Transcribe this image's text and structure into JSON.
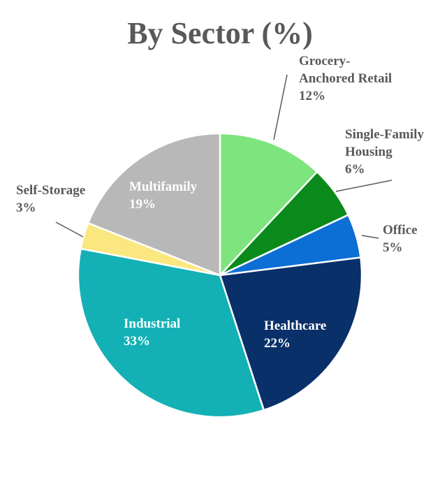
{
  "chart_data": {
    "type": "pie",
    "title": "By Sector (%)",
    "slices": [
      {
        "name": "Grocery-Anchored Retail",
        "label_lines": [
          "Grocery-",
          "Anchored Retail"
        ],
        "value": 12,
        "value_label": "12%",
        "color": "#7ee47e",
        "label_style": "outside"
      },
      {
        "name": "Single-Family Housing",
        "label_lines": [
          "Single-Family",
          "Housing"
        ],
        "value": 6,
        "value_label": "6%",
        "color": "#0a8a1a",
        "label_style": "outside"
      },
      {
        "name": "Office",
        "label_lines": [
          "Office"
        ],
        "value": 5,
        "value_label": "5%",
        "color": "#0b6fd6",
        "label_style": "outside"
      },
      {
        "name": "Healthcare",
        "label_lines": [
          "Healthcare"
        ],
        "value": 22,
        "value_label": "22%",
        "color": "#0a306a",
        "label_style": "inside"
      },
      {
        "name": "Industrial",
        "label_lines": [
          "Industrial"
        ],
        "value": 33,
        "value_label": "33%",
        "color": "#13b1b6",
        "label_style": "inside"
      },
      {
        "name": "Self-Storage",
        "label_lines": [
          "Self-Storage"
        ],
        "value": 3,
        "value_label": "3%",
        "color": "#fbe77f",
        "label_style": "outside"
      },
      {
        "name": "Multifamily",
        "label_lines": [
          "Multifamily"
        ],
        "value": 19,
        "value_label": "19%",
        "color": "#b8b8b8",
        "label_style": "inside"
      }
    ],
    "text_colors": {
      "outside": "#595959",
      "inside": "#ffffff",
      "leader": "#595959"
    }
  }
}
